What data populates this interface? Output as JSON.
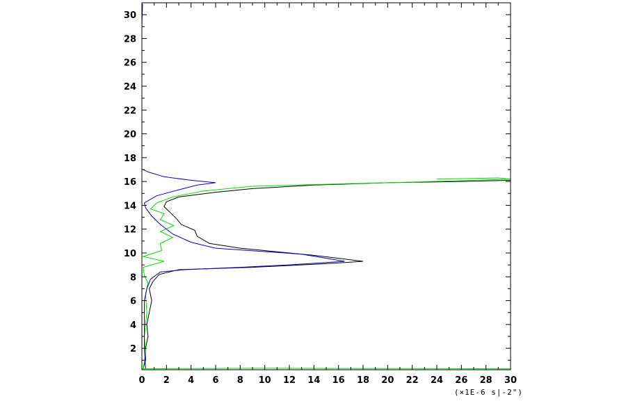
{
  "chart_data": {
    "type": "line",
    "title": "",
    "xlabel": "",
    "ylabel": "",
    "x_unit_label": "(×1E-6 s|-2\")",
    "xlim": [
      0,
      30
    ],
    "ylim": [
      0.2,
      31
    ],
    "x_ticks": [
      0,
      2,
      4,
      6,
      8,
      10,
      12,
      14,
      16,
      18,
      20,
      22,
      24,
      26,
      28,
      30
    ],
    "y_ticks": [
      2,
      4,
      6,
      8,
      10,
      12,
      14,
      16,
      18,
      20,
      22,
      24,
      26,
      28,
      30
    ],
    "grid": false,
    "series": [
      {
        "color": "#000000",
        "points": [
          [
            0.1,
            0.3
          ],
          [
            0.3,
            1.0
          ],
          [
            0.3,
            2.0
          ],
          [
            0.5,
            3.0
          ],
          [
            0.4,
            4.0
          ],
          [
            0.6,
            5.0
          ],
          [
            0.8,
            6.0
          ],
          [
            0.6,
            7.0
          ],
          [
            0.9,
            7.6
          ],
          [
            1.4,
            8.2
          ],
          [
            3.0,
            8.6
          ],
          [
            9.0,
            8.8
          ],
          [
            15.0,
            9.1
          ],
          [
            18.0,
            9.3
          ],
          [
            14.0,
            9.8
          ],
          [
            8.0,
            10.4
          ],
          [
            5.5,
            10.8
          ],
          [
            4.5,
            11.4
          ],
          [
            4.3,
            11.9
          ],
          [
            3.2,
            12.4
          ],
          [
            2.8,
            12.9
          ],
          [
            2.2,
            13.5
          ],
          [
            1.8,
            13.9
          ],
          [
            2.0,
            14.3
          ],
          [
            3.0,
            14.7
          ],
          [
            6.0,
            15.1
          ],
          [
            9.0,
            15.4
          ],
          [
            14.0,
            15.7
          ],
          [
            20.0,
            15.9
          ],
          [
            26.0,
            16.0
          ],
          [
            30.0,
            16.1
          ]
        ]
      },
      {
        "color": "#00dd00",
        "points": [
          [
            0.1,
            0.3
          ],
          [
            0.3,
            1.5
          ],
          [
            0.2,
            3.0
          ],
          [
            0.4,
            5.0
          ],
          [
            0.3,
            6.5
          ],
          [
            0.5,
            7.5
          ],
          [
            0.2,
            8.1
          ],
          [
            0.1,
            8.8
          ],
          [
            1.8,
            9.3
          ],
          [
            0.1,
            9.7
          ],
          [
            1.6,
            10.2
          ],
          [
            1.5,
            10.8
          ],
          [
            2.5,
            11.3
          ],
          [
            1.5,
            11.8
          ],
          [
            2.6,
            12.3
          ],
          [
            1.5,
            12.8
          ],
          [
            1.8,
            13.3
          ],
          [
            0.7,
            13.7
          ],
          [
            1.2,
            14.2
          ],
          [
            2.5,
            14.7
          ],
          [
            5.0,
            15.2
          ],
          [
            9.0,
            15.6
          ],
          [
            16.0,
            15.8
          ],
          [
            22.0,
            15.95
          ],
          [
            30.0,
            16.2
          ],
          [
            29.0,
            16.3
          ],
          [
            24.0,
            16.2
          ]
        ]
      },
      {
        "color": "#0000cc",
        "points": [
          [
            0.3,
            0.3
          ],
          [
            0.2,
            2.0
          ],
          [
            0.2,
            4.0
          ],
          [
            0.2,
            6.0
          ],
          [
            0.4,
            7.0
          ],
          [
            0.7,
            7.8
          ],
          [
            1.5,
            8.4
          ],
          [
            3.5,
            8.6
          ],
          [
            8.0,
            8.8
          ],
          [
            12.0,
            9.0
          ],
          [
            16.5,
            9.3
          ],
          [
            13.0,
            9.9
          ],
          [
            6.0,
            10.4
          ],
          [
            4.0,
            10.9
          ],
          [
            2.5,
            11.6
          ],
          [
            1.5,
            12.4
          ],
          [
            0.8,
            13.1
          ],
          [
            0.3,
            13.8
          ],
          [
            0.2,
            14.2
          ],
          [
            1.2,
            14.8
          ],
          [
            3.0,
            15.3
          ],
          [
            4.5,
            15.7
          ],
          [
            6.0,
            15.9
          ],
          [
            4.0,
            16.1
          ],
          [
            1.8,
            16.4
          ],
          [
            0.5,
            16.8
          ],
          [
            0.1,
            17.0
          ]
        ]
      },
      {
        "color": "#0000cc",
        "points": [
          [
            0.0,
            29.0
          ],
          [
            0.05,
            30.9
          ]
        ]
      },
      {
        "color": "#00dd00",
        "points": [
          [
            0.0,
            0.28
          ],
          [
            10.0,
            0.32
          ],
          [
            20.0,
            0.3
          ],
          [
            30.0,
            0.28
          ]
        ]
      }
    ]
  }
}
